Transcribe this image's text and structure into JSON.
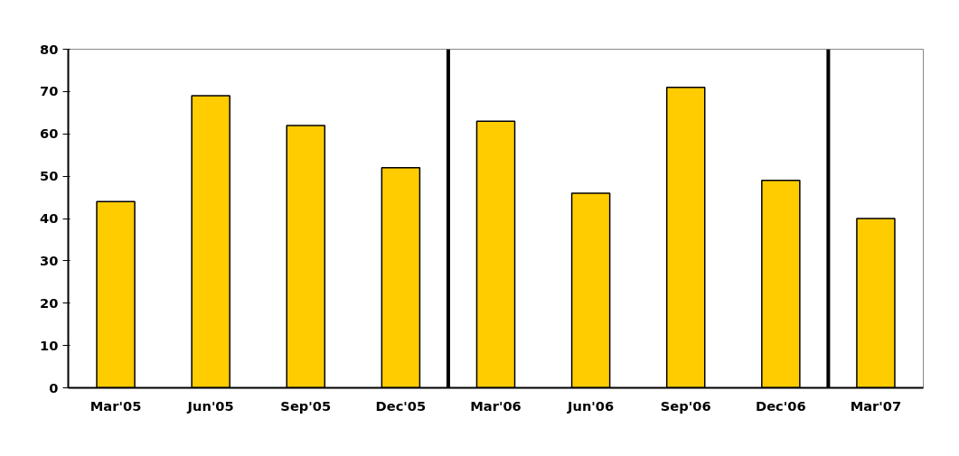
{
  "chart_data": {
    "type": "bar",
    "categories": [
      "Mar'05",
      "Jun'05",
      "Sep'05",
      "Dec'05",
      "Mar'06",
      "Jun'06",
      "Sep'06",
      "Dec'06",
      "Mar'07"
    ],
    "values": [
      44,
      69,
      62,
      52,
      63,
      46,
      71,
      49,
      40
    ],
    "color": "#ffcc00",
    "ylim": [
      0,
      80
    ],
    "yticks": [
      0,
      10,
      20,
      30,
      40,
      50,
      60,
      70,
      80
    ],
    "grid": false
  }
}
